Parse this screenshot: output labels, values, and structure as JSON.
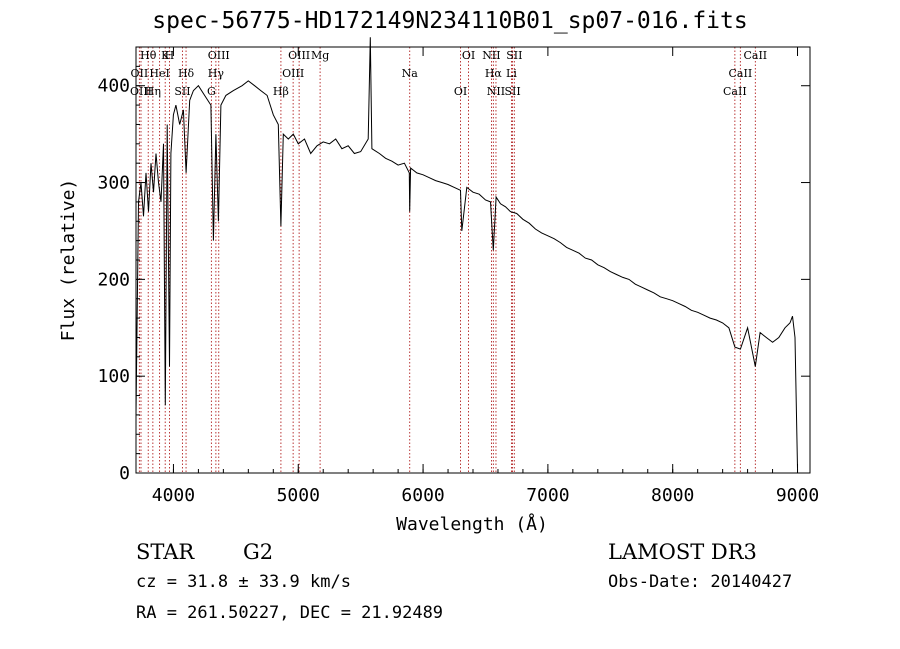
{
  "chart_data": {
    "type": "line",
    "title": "spec-56775-HD172149N234110B01_sp07-016.fits",
    "xlabel": "Wavelength (Å)",
    "ylabel": "Flux (relative)",
    "xlim": [
      3700,
      9100
    ],
    "ylim": [
      0,
      440
    ],
    "x_ticks": [
      4000,
      5000,
      6000,
      7000,
      8000,
      9000
    ],
    "y_ticks": [
      0,
      100,
      200,
      300,
      400
    ],
    "series": [
      {
        "name": "flux",
        "x": [
          3700,
          3720,
          3740,
          3760,
          3780,
          3800,
          3820,
          3840,
          3860,
          3880,
          3900,
          3920,
          3935,
          3950,
          3968,
          3980,
          4000,
          4020,
          4050,
          4080,
          4101,
          4130,
          4160,
          4200,
          4250,
          4300,
          4320,
          4340,
          4360,
          4380,
          4420,
          4480,
          4550,
          4600,
          4650,
          4700,
          4750,
          4800,
          4840,
          4861,
          4880,
          4920,
          4960,
          5000,
          5050,
          5100,
          5150,
          5200,
          5250,
          5300,
          5350,
          5400,
          5450,
          5500,
          5560,
          5577,
          5590,
          5650,
          5700,
          5750,
          5800,
          5850,
          5890,
          5893,
          5900,
          5950,
          6000,
          6050,
          6100,
          6150,
          6200,
          6250,
          6300,
          6310,
          6350,
          6400,
          6450,
          6500,
          6540,
          6563,
          6585,
          6620,
          6660,
          6700,
          6750,
          6800,
          6850,
          6900,
          6950,
          7000,
          7050,
          7100,
          7150,
          7200,
          7250,
          7300,
          7350,
          7400,
          7450,
          7500,
          7550,
          7600,
          7650,
          7700,
          7750,
          7800,
          7850,
          7900,
          7950,
          8000,
          8050,
          8100,
          8150,
          8200,
          8250,
          8300,
          8350,
          8400,
          8450,
          8498,
          8542,
          8600,
          8662,
          8700,
          8750,
          8800,
          8850,
          8900,
          8940,
          8960,
          8980,
          9000
        ],
        "values": [
          60,
          280,
          300,
          265,
          310,
          270,
          320,
          290,
          330,
          300,
          280,
          340,
          70,
          360,
          110,
          330,
          370,
          380,
          360,
          375,
          310,
          385,
          395,
          400,
          390,
          380,
          240,
          350,
          260,
          380,
          390,
          395,
          400,
          405,
          400,
          395,
          390,
          370,
          360,
          255,
          350,
          345,
          350,
          340,
          345,
          330,
          338,
          342,
          340,
          345,
          335,
          338,
          330,
          332,
          345,
          450,
          335,
          330,
          325,
          322,
          318,
          320,
          310,
          270,
          315,
          310,
          308,
          305,
          302,
          300,
          298,
          295,
          292,
          250,
          295,
          290,
          288,
          282,
          280,
          230,
          285,
          278,
          275,
          270,
          268,
          262,
          258,
          252,
          248,
          245,
          242,
          238,
          233,
          230,
          227,
          222,
          220,
          215,
          212,
          208,
          205,
          202,
          200,
          195,
          192,
          189,
          186,
          182,
          180,
          178,
          175,
          172,
          168,
          166,
          163,
          160,
          158,
          155,
          150,
          130,
          128,
          150,
          110,
          145,
          140,
          135,
          140,
          150,
          155,
          162,
          140,
          5
        ]
      }
    ],
    "line_markers": [
      {
        "label": "Hθ",
        "wavelength": 3798
      },
      {
        "label": "OII",
        "wavelength": 3727
      },
      {
        "label": "OIII",
        "wavelength": 3740
      },
      {
        "label": "K",
        "wavelength": 3934
      },
      {
        "label": "HeI",
        "wavelength": 3889
      },
      {
        "label": "Hη",
        "wavelength": 3835
      },
      {
        "label": "H",
        "wavelength": 3968
      },
      {
        "label": "Hδ",
        "wavelength": 4101
      },
      {
        "label": "SII",
        "wavelength": 4072
      },
      {
        "label": "OIII",
        "wavelength": 4363
      },
      {
        "label": "Hγ",
        "wavelength": 4340
      },
      {
        "label": "G",
        "wavelength": 4304
      },
      {
        "label": "OIII",
        "wavelength": 5007
      },
      {
        "label": "OIII",
        "wavelength": 4959
      },
      {
        "label": "Hβ",
        "wavelength": 4861
      },
      {
        "label": "Mg",
        "wavelength": 5175
      },
      {
        "label": "Na",
        "wavelength": 5893
      },
      {
        "label": "OI",
        "wavelength": 6300
      },
      {
        "label": "OI",
        "wavelength": 6364
      },
      {
        "label": "Hα",
        "wavelength": 6563
      },
      {
        "label": "SII",
        "wavelength": 6717
      },
      {
        "label": "NII",
        "wavelength": 6548
      },
      {
        "label": "Li",
        "wavelength": 6708
      },
      {
        "label": "NII",
        "wavelength": 6584
      },
      {
        "label": "SII",
        "wavelength": 6731
      },
      {
        "label": "CaII",
        "wavelength": 8542
      },
      {
        "label": "CaII",
        "wavelength": 8498
      },
      {
        "label": "CaII",
        "wavelength": 8662
      }
    ]
  },
  "info": {
    "object_class": "STAR",
    "subclass": "G2",
    "cz": "cz = 31.8 ± 33.9 km/s",
    "coords": "RA = 261.50227, DEC =  21.92489",
    "survey": "LAMOST DR3",
    "obs_date": "Obs-Date: 20140427"
  },
  "colors": {
    "spectrum": "#000000",
    "marker": "#b22222",
    "axis": "#000000"
  }
}
